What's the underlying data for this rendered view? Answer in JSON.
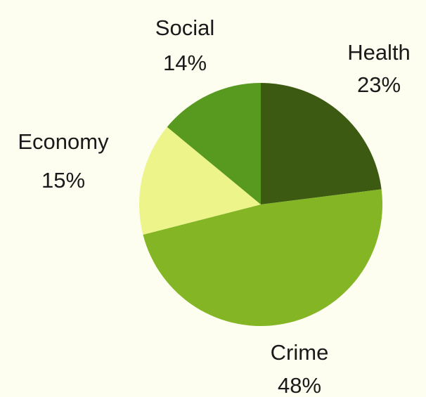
{
  "chart_data": {
    "type": "pie",
    "title": "",
    "start_angle_deg": 0,
    "direction": "clockwise",
    "background": "#fdfdf0",
    "slices": [
      {
        "label": "Health",
        "value": 23,
        "value_label": "23%",
        "color": "#3d5a12"
      },
      {
        "label": "Crime",
        "value": 48,
        "value_label": "48%",
        "color": "#84b525"
      },
      {
        "label": "Economy",
        "value": 15,
        "value_label": "15%",
        "color": "#ecf48a"
      },
      {
        "label": "Social",
        "value": 14,
        "value_label": "14%",
        "color": "#58991f"
      }
    ]
  }
}
